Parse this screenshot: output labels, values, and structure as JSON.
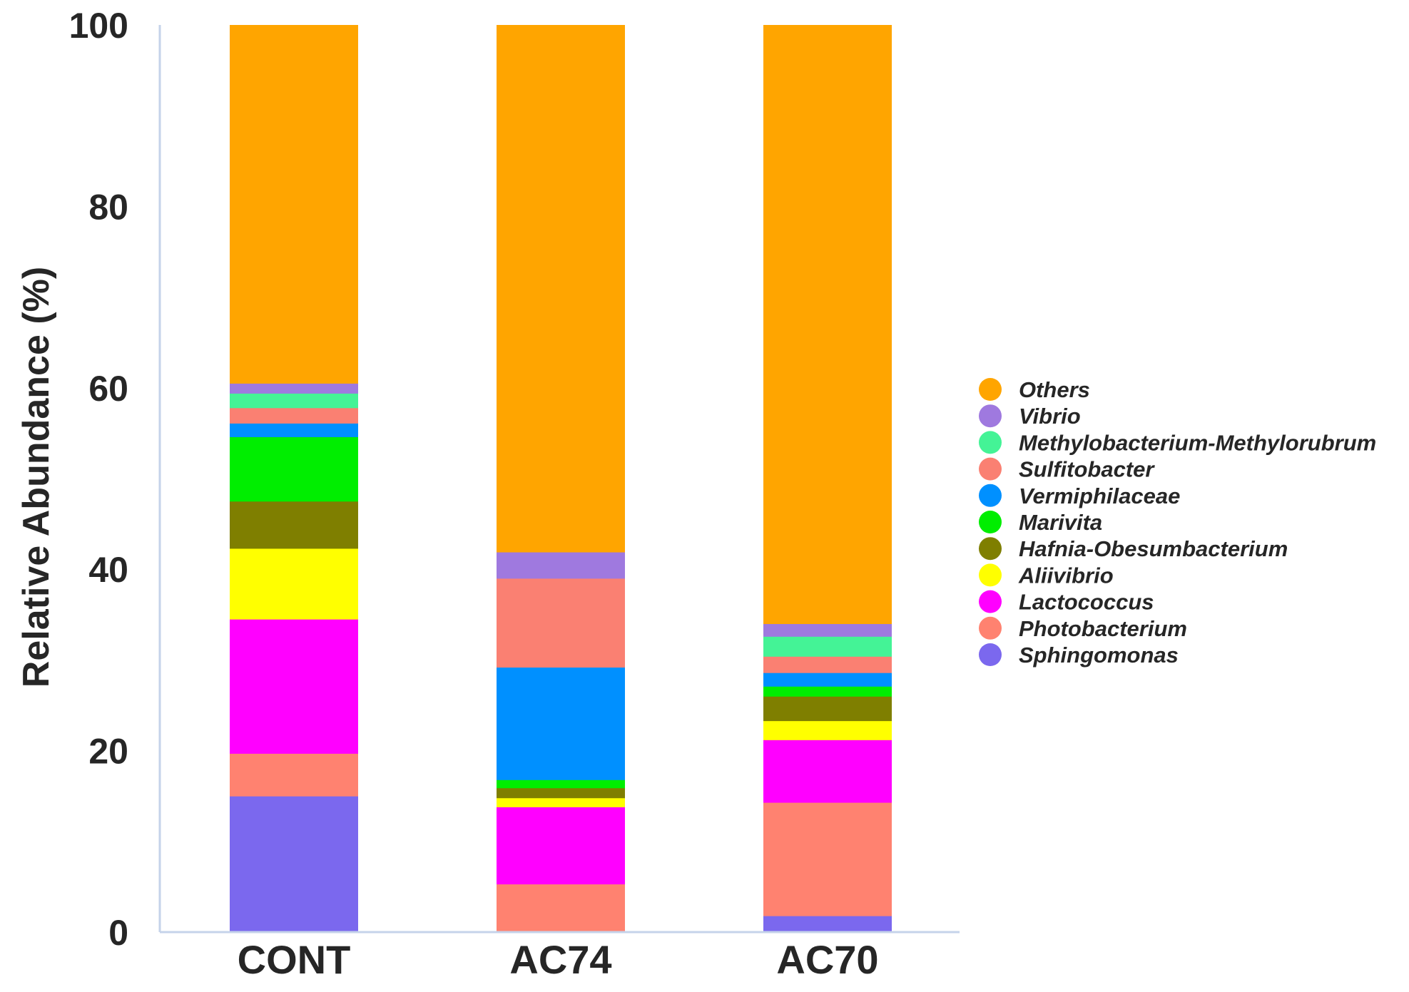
{
  "chart_data": {
    "type": "bar",
    "stacked": true,
    "title": "",
    "xlabel": "",
    "ylabel": "Relative Abundance (%)",
    "ylim": [
      0,
      100
    ],
    "yticks": [
      0,
      20,
      40,
      60,
      80,
      100
    ],
    "categories": [
      "CONT",
      "AC74",
      "AC70"
    ],
    "legend_position": "right",
    "series": [
      {
        "name": "Sphingomonas",
        "color": "#7B68EE",
        "values": [
          15.0,
          0.0,
          1.8
        ]
      },
      {
        "name": "Photobacterium",
        "color": "#FF8270",
        "values": [
          4.7,
          5.3,
          12.5
        ]
      },
      {
        "name": "Lactococcus",
        "color": "#FF00FF",
        "values": [
          14.8,
          8.5,
          6.9
        ]
      },
      {
        "name": "Aliivibrio",
        "color": "#FFFF00",
        "values": [
          7.8,
          1.0,
          2.1
        ]
      },
      {
        "name": "Hafnia-Obesumbacterium",
        "color": "#7F7F00",
        "values": [
          5.2,
          1.1,
          2.7
        ]
      },
      {
        "name": "Marivita",
        "color": "#00EE00",
        "values": [
          7.1,
          0.9,
          1.1
        ]
      },
      {
        "name": "Vermiphilaceae",
        "color": "#0090FF",
        "values": [
          1.5,
          12.4,
          1.5
        ]
      },
      {
        "name": "Sulfitobacter",
        "color": "#FA8072",
        "values": [
          1.7,
          9.8,
          1.8
        ]
      },
      {
        "name": "Methylobacterium-Methylorubrum",
        "color": "#44F396",
        "values": [
          1.6,
          0.0,
          2.2
        ]
      },
      {
        "name": "Vibrio",
        "color": "#9F79DF",
        "values": [
          1.1,
          2.9,
          1.4
        ]
      },
      {
        "name": "Others",
        "color": "#FFA500",
        "values": [
          39.5,
          58.1,
          66.0
        ]
      }
    ],
    "legend_order": [
      "Others",
      "Vibrio",
      "Methylobacterium-Methylorubrum",
      "Sulfitobacter",
      "Vermiphilaceae",
      "Marivita",
      "Hafnia-Obesumbacterium",
      "Aliivibrio",
      "Lactococcus",
      "Photobacterium",
      "Sphingomonas"
    ],
    "axis_color": "#C5D3EA"
  }
}
